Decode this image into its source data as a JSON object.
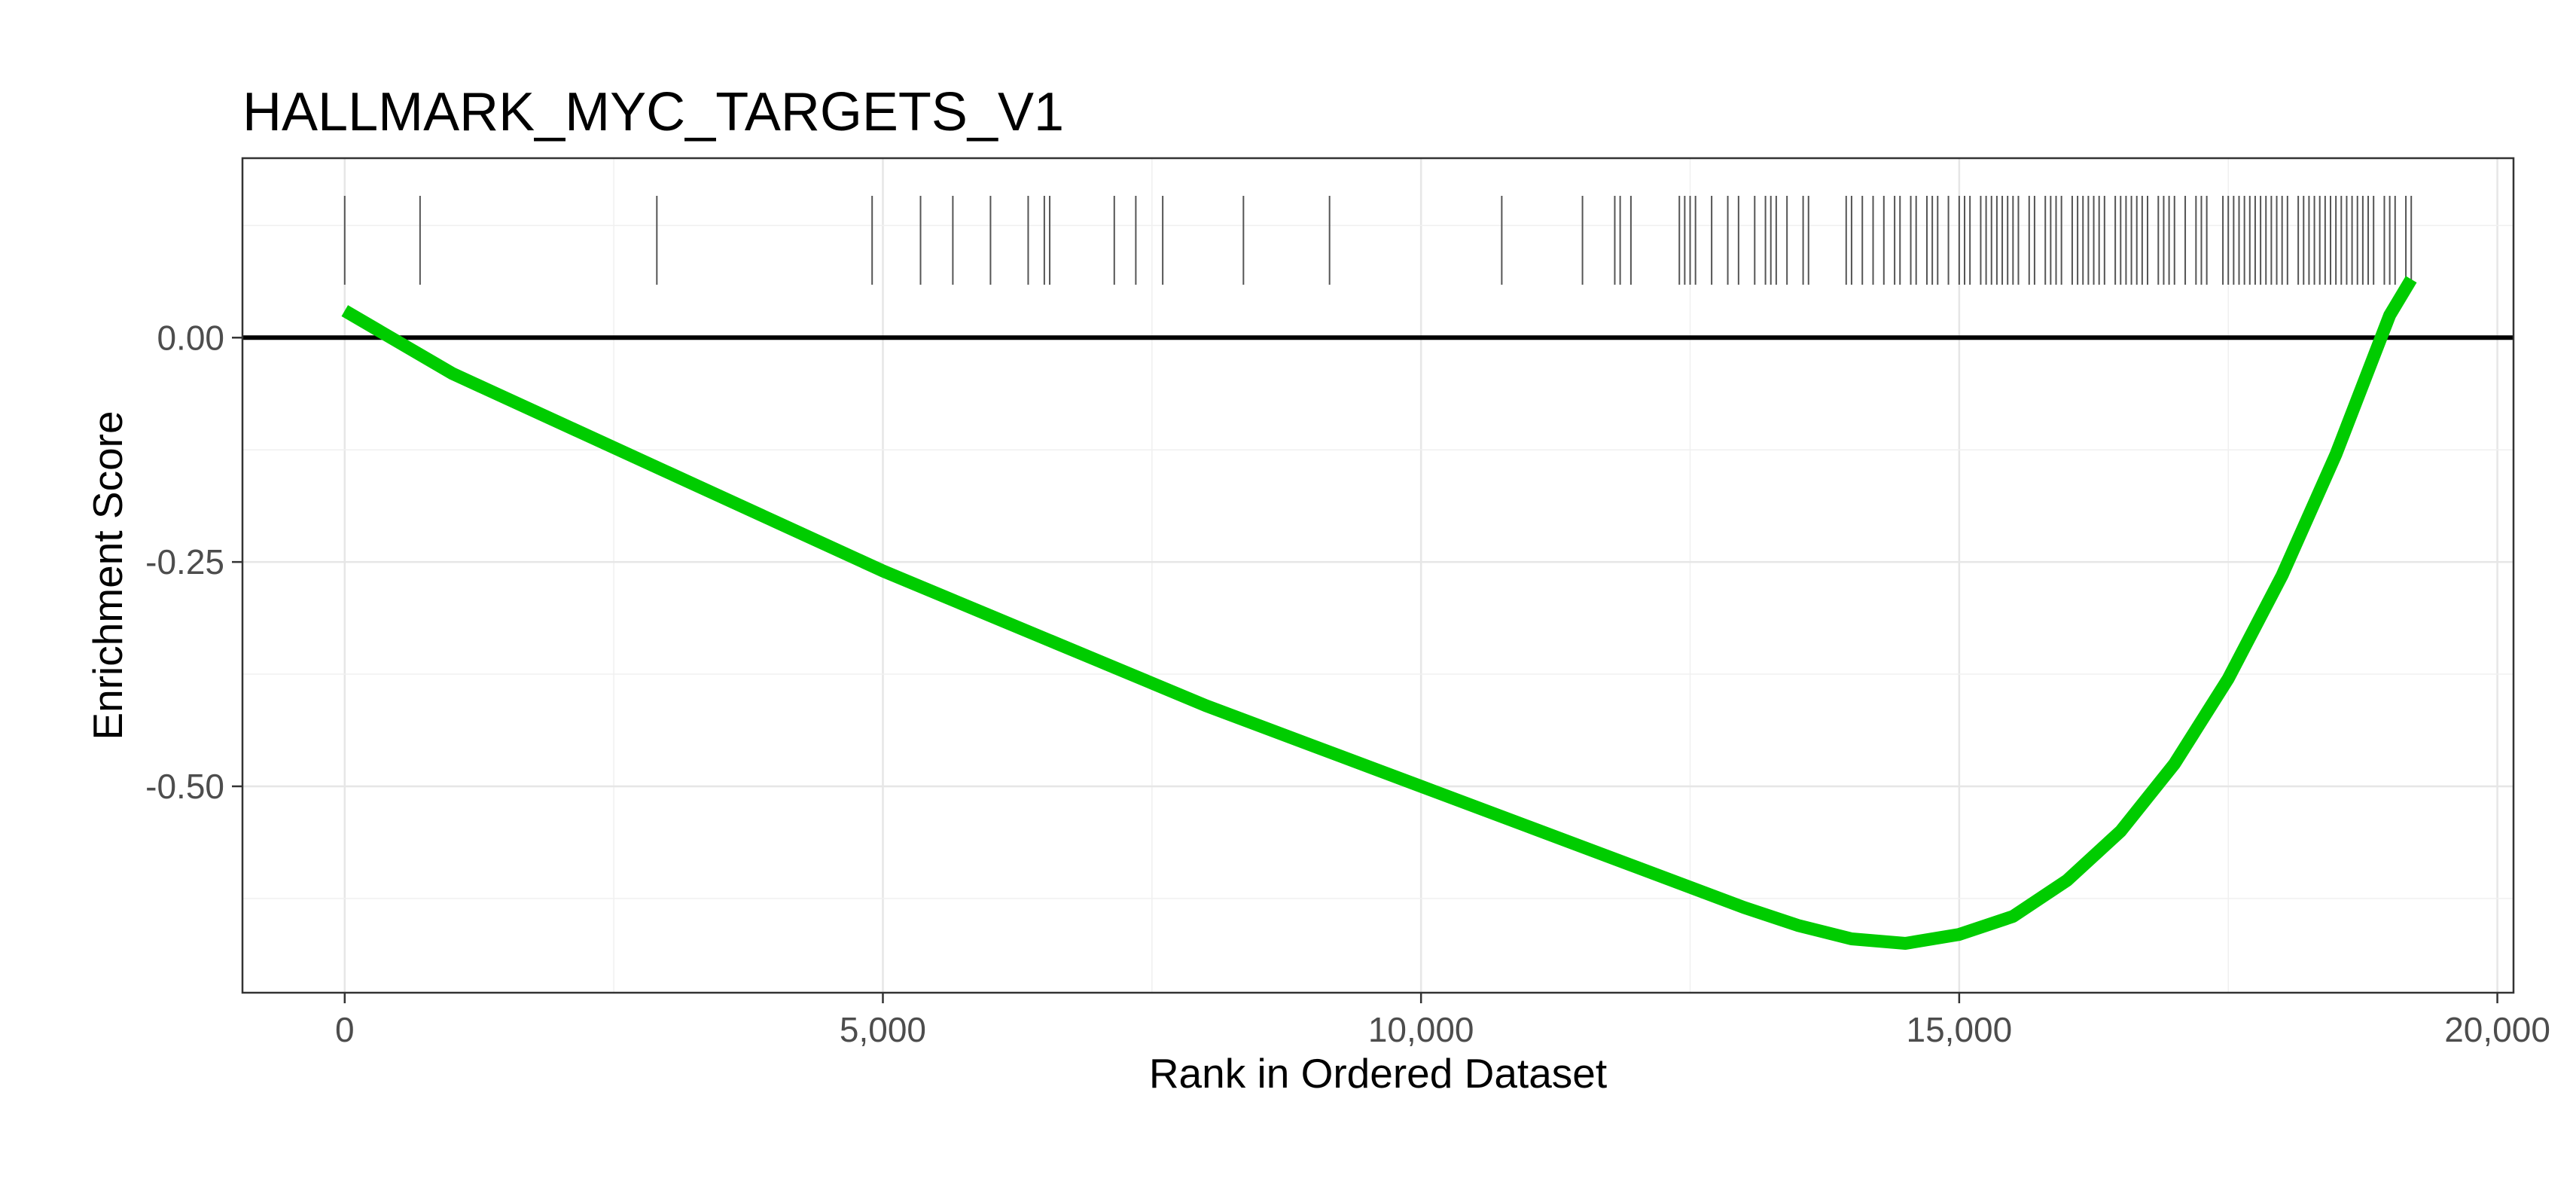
{
  "chart_data": {
    "type": "line",
    "title": "HALLMARK_MYC_TARGETS_V1",
    "xlabel": "Rank in Ordered Dataset",
    "ylabel": "Enrichment Score",
    "xlim": [
      -950,
      20150
    ],
    "ylim": [
      -0.73,
      0.2
    ],
    "x_ticks": [
      0,
      5000,
      10000,
      15000,
      20000
    ],
    "x_tick_labels": [
      "0",
      "5,000",
      "10,000",
      "15,000",
      "20,000"
    ],
    "y_ticks": [
      0.0,
      -0.25,
      -0.5
    ],
    "y_tick_labels": [
      "0.00",
      "-0.25",
      "-0.50"
    ],
    "grid": true,
    "zero_line": 0,
    "series": [
      {
        "color": "#00cc00",
        "x": [
          0,
          1000,
          2000,
          3000,
          4000,
          5000,
          6000,
          7000,
          8000,
          9000,
          10000,
          11000,
          12000,
          13000,
          13500,
          14000,
          14500,
          15000,
          15500,
          16000,
          16500,
          17000,
          17500,
          18000,
          18500,
          19000,
          19200
        ],
        "y": [
          0.03,
          -0.04,
          -0.095,
          -0.15,
          -0.205,
          -0.26,
          -0.31,
          -0.36,
          -0.41,
          -0.455,
          -0.5,
          -0.545,
          -0.59,
          -0.635,
          -0.655,
          -0.67,
          -0.675,
          -0.665,
          -0.645,
          -0.605,
          -0.55,
          -0.475,
          -0.38,
          -0.265,
          -0.13,
          0.025,
          0.065
        ]
      }
    ],
    "hit_ranks": [
      0,
      700,
      2900,
      4900,
      5350,
      5650,
      6000,
      6350,
      6500,
      6550,
      7150,
      7350,
      7600,
      8350,
      9150,
      10750,
      11500,
      11800,
      11850,
      11950,
      12400,
      12450,
      12500,
      12550,
      12700,
      12850,
      12950,
      13100,
      13200,
      13250,
      13300,
      13400,
      13550,
      13600,
      13950,
      14000,
      14100,
      14200,
      14300,
      14400,
      14450,
      14550,
      14600,
      14700,
      14750,
      14800,
      14900,
      15000,
      15050,
      15100,
      15200,
      15250,
      15300,
      15350,
      15400,
      15450,
      15500,
      15550,
      15650,
      15700,
      15800,
      15850,
      15900,
      15950,
      16050,
      16100,
      16150,
      16200,
      16250,
      16300,
      16350,
      16450,
      16500,
      16550,
      16600,
      16650,
      16700,
      16750,
      16850,
      16900,
      16950,
      17000,
      17100,
      17200,
      17250,
      17300,
      17450,
      17500,
      17550,
      17600,
      17650,
      17700,
      17750,
      17800,
      17850,
      17900,
      17950,
      18000,
      18050,
      18150,
      18200,
      18250,
      18300,
      18350,
      18400,
      18450,
      18500,
      18550,
      18600,
      18650,
      18700,
      18750,
      18800,
      18850,
      18950,
      19000,
      19050,
      19150,
      19200
    ]
  }
}
